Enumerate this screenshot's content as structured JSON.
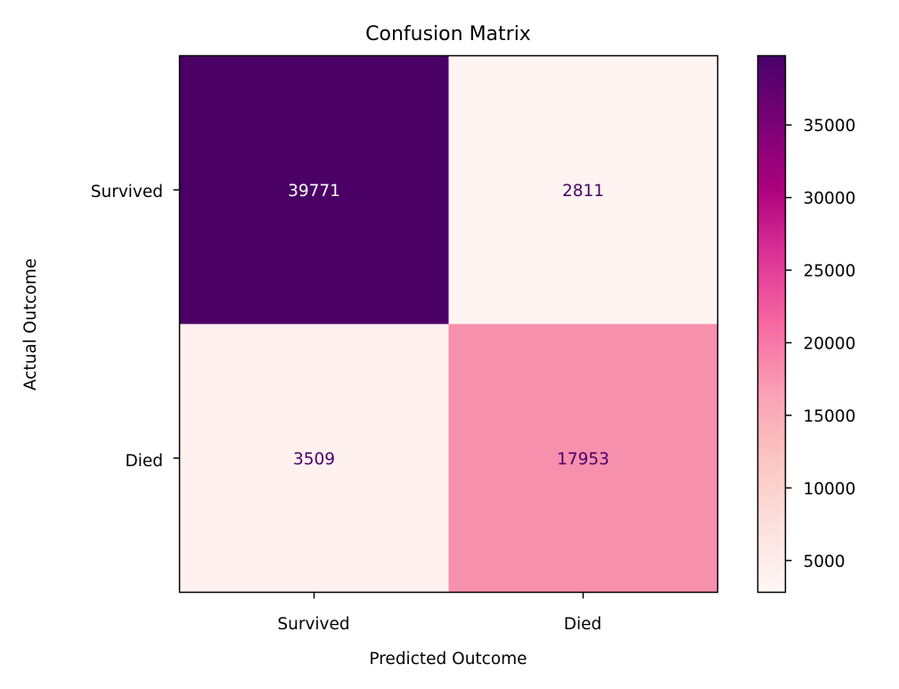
{
  "chart_data": {
    "type": "heatmap",
    "title": "Confusion Matrix",
    "xlabel": "Predicted Outcome",
    "ylabel": "Actual Outcome",
    "x_categories": [
      "Survived",
      "Died"
    ],
    "y_categories": [
      "Survived",
      "Died"
    ],
    "values": [
      [
        39771,
        2811
      ],
      [
        3509,
        17953
      ]
    ],
    "colorbar": {
      "colormap": "RdPu",
      "vmin": 2811,
      "vmax": 39771,
      "ticks": [
        5000,
        10000,
        15000,
        20000,
        25000,
        30000,
        35000
      ]
    },
    "cell_colors": [
      [
        "#4b0066",
        "#fff4f1"
      ],
      [
        "#fff1ee",
        "#f790ad"
      ]
    ],
    "text_color_dark_cell": "#ffffff",
    "text_color_light_cell": "#49006a",
    "grid": false,
    "legend": "none"
  }
}
